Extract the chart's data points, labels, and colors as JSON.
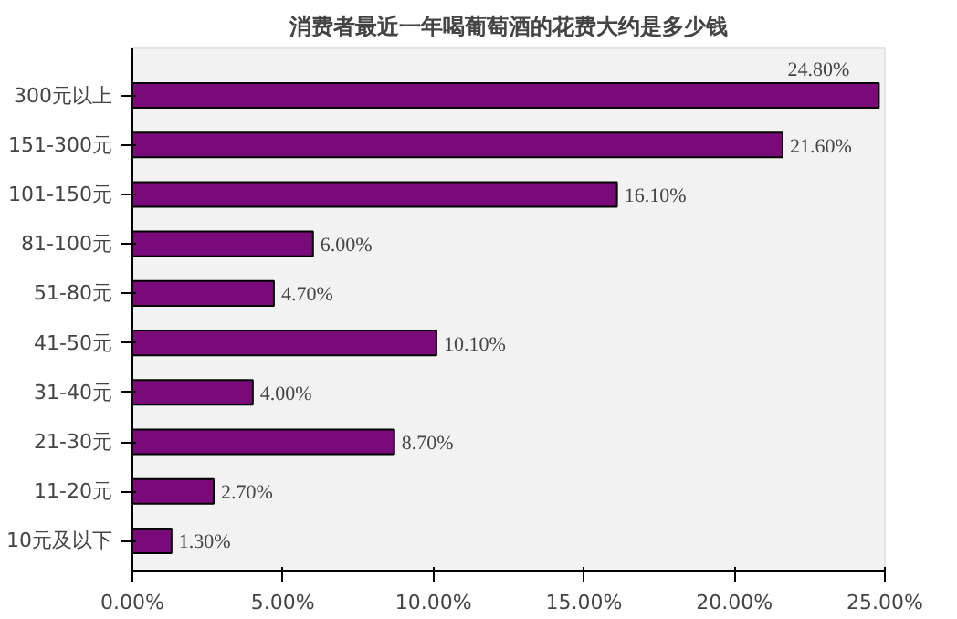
{
  "chart_data": {
    "type": "bar",
    "orientation": "horizontal",
    "title": "消费者最近一年喝葡萄酒的花费大约是多少钱",
    "categories": [
      "300元以上",
      "151-300元",
      "101-150元",
      "81-100元",
      "51-80元",
      "41-50元",
      "31-40元",
      "21-30元",
      "11-20元",
      "10元及以下"
    ],
    "values": [
      24.8,
      21.6,
      16.1,
      6.0,
      4.7,
      10.1,
      4.0,
      8.7,
      2.7,
      1.3
    ],
    "value_labels": [
      "24.80%",
      "21.60%",
      "16.10%",
      "6.00%",
      "4.70%",
      "10.10%",
      "4.00%",
      "8.70%",
      "2.70%",
      "1.30%"
    ],
    "color": "#7a0a7a",
    "xlim": [
      0,
      25
    ],
    "xticks": [
      {
        "value": 0,
        "label": "0.00%"
      },
      {
        "value": 5,
        "label": "5.00%"
      },
      {
        "value": 10,
        "label": "10.00%"
      },
      {
        "value": 15,
        "label": "15.00%"
      },
      {
        "value": 20,
        "label": "20.00%"
      },
      {
        "value": 25,
        "label": "25.00%"
      }
    ],
    "grid": false
  }
}
